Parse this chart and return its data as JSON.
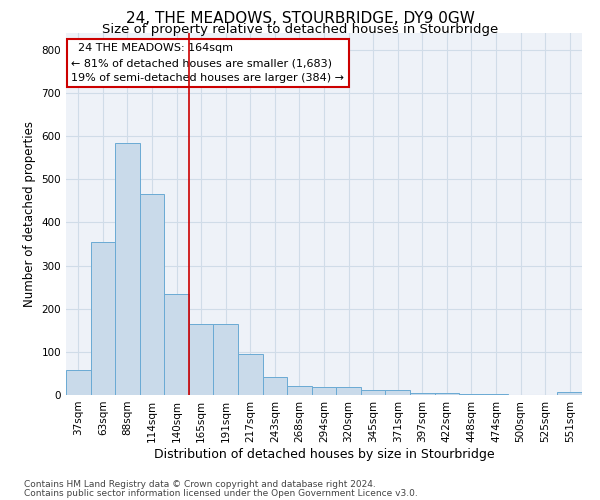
{
  "title": "24, THE MEADOWS, STOURBRIDGE, DY9 0GW",
  "subtitle": "Size of property relative to detached houses in Stourbridge",
  "xlabel": "Distribution of detached houses by size in Stourbridge",
  "ylabel": "Number of detached properties",
  "footer_line1": "Contains HM Land Registry data © Crown copyright and database right 2024.",
  "footer_line2": "Contains public sector information licensed under the Open Government Licence v3.0.",
  "bin_labels": [
    "37sqm",
    "63sqm",
    "88sqm",
    "114sqm",
    "140sqm",
    "165sqm",
    "191sqm",
    "217sqm",
    "243sqm",
    "268sqm",
    "294sqm",
    "320sqm",
    "345sqm",
    "371sqm",
    "397sqm",
    "422sqm",
    "448sqm",
    "474sqm",
    "500sqm",
    "525sqm",
    "551sqm"
  ],
  "bar_heights": [
    57,
    355,
    585,
    465,
    235,
    165,
    165,
    95,
    42,
    20,
    18,
    18,
    12,
    12,
    4,
    4,
    2,
    2,
    0,
    0,
    6
  ],
  "bar_color": "#c9daea",
  "bar_edge_color": "#6aaad4",
  "property_line_x": 4.5,
  "property_line_color": "#cc0000",
  "annotation_line1": "  24 THE MEADOWS: 164sqm",
  "annotation_line2": "← 81% of detached houses are smaller (1,683)",
  "annotation_line3": "19% of semi-detached houses are larger (384) →",
  "annotation_box_color": "#ffffff",
  "annotation_box_edge_color": "#cc0000",
  "ylim": [
    0,
    840
  ],
  "yticks": [
    0,
    100,
    200,
    300,
    400,
    500,
    600,
    700,
    800
  ],
  "grid_color": "#d0dce8",
  "bg_color": "#eef2f8",
  "title_fontsize": 11,
  "subtitle_fontsize": 9.5,
  "xlabel_fontsize": 9,
  "ylabel_fontsize": 8.5,
  "tick_fontsize": 7.5,
  "annotation_fontsize": 8,
  "footer_fontsize": 6.5
}
